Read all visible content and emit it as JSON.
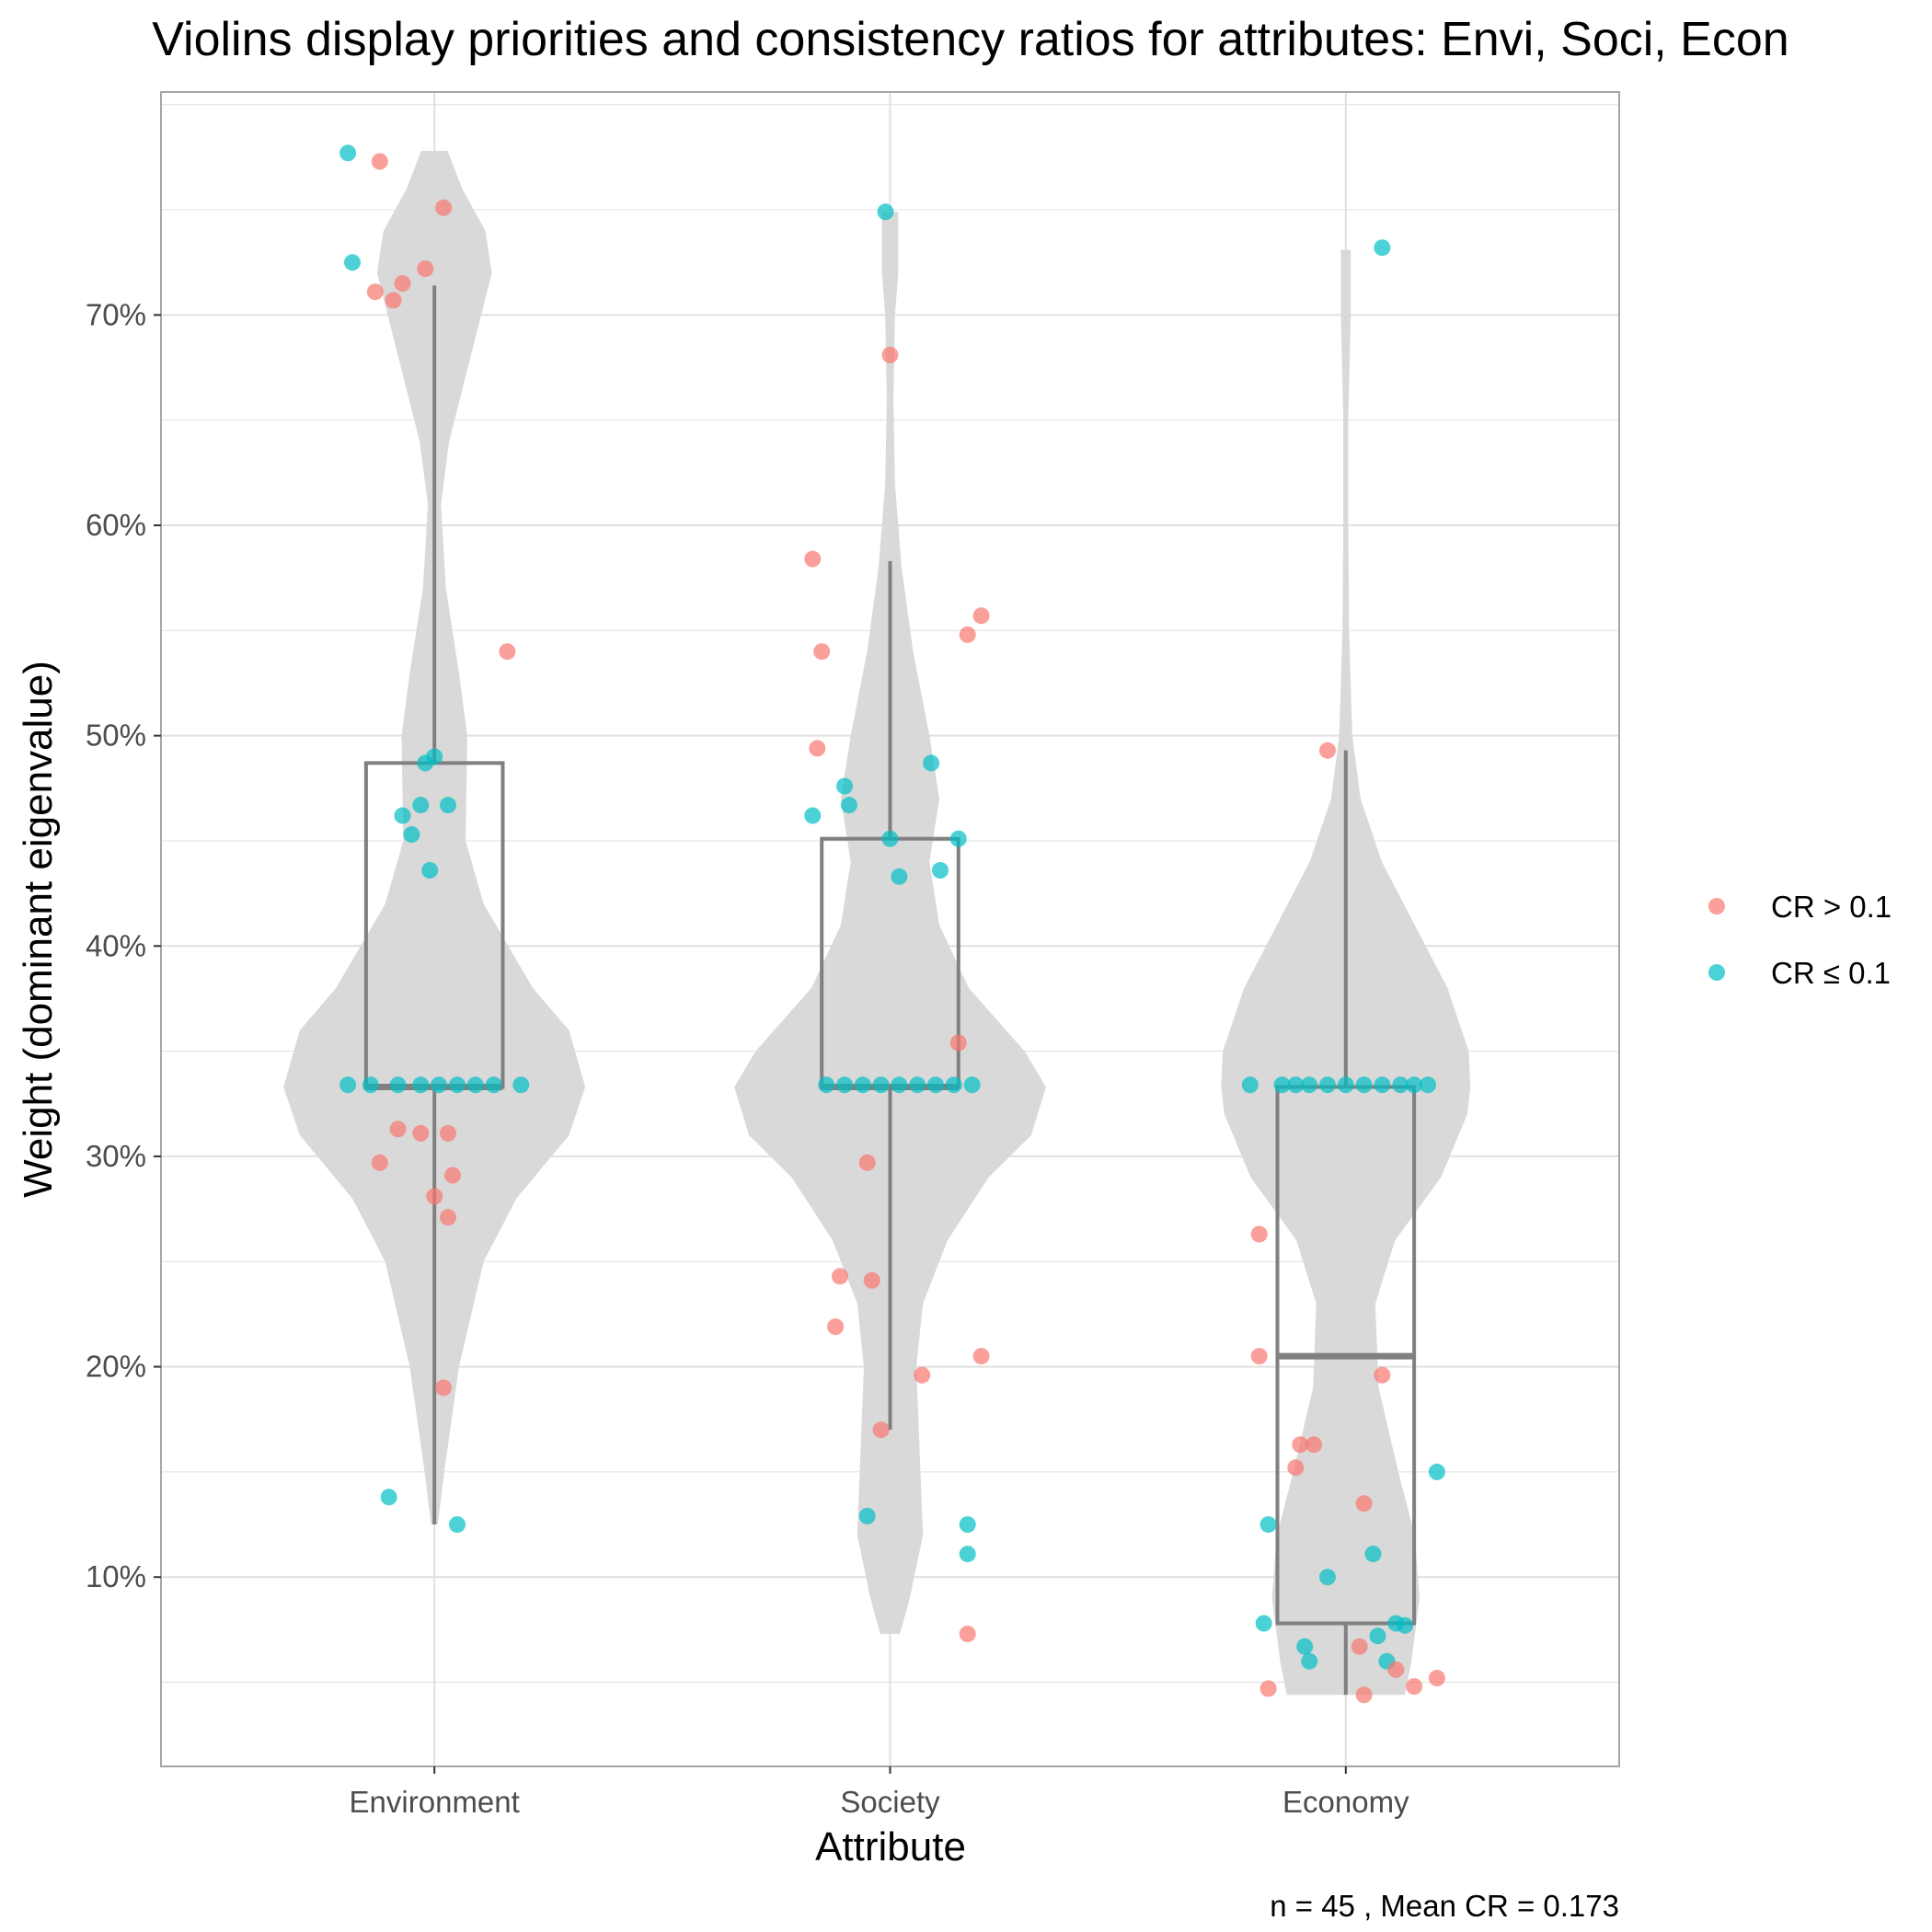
{
  "chart_data": {
    "type": "violin",
    "title": "Violins display priorities and consistency ratios for attributes: Envi, Soci, Econ",
    "xlabel": "Attribute",
    "ylabel": "Weight (dominant eigenvalue)",
    "caption": "n = 45 , Mean CR = 0.173",
    "ylim": [
      0.01,
      0.806
    ],
    "y_ticks": [
      {
        "value": 0.1,
        "label": "10%"
      },
      {
        "value": 0.2,
        "label": "20%"
      },
      {
        "value": 0.3,
        "label": "30%"
      },
      {
        "value": 0.4,
        "label": "40%"
      },
      {
        "value": 0.5,
        "label": "50%"
      },
      {
        "value": 0.6,
        "label": "60%"
      },
      {
        "value": 0.7,
        "label": "70%"
      }
    ],
    "y_minor": [
      0.05,
      0.15,
      0.25,
      0.35,
      0.45,
      0.55,
      0.65,
      0.75,
      0.8
    ],
    "categories": [
      "Environment",
      "Society",
      "Economy"
    ],
    "grid": true,
    "legend": {
      "position": "right",
      "items": [
        {
          "label": "CR > 0.1",
          "color": "#F8766D"
        },
        {
          "label": "CR ≤ 0.1",
          "color": "#00BFC4"
        }
      ]
    },
    "colors": {
      "violin": "#d9d9d9",
      "box": "#808080",
      "high_cr": "#F8766D",
      "low_cr": "#00BFC4",
      "grid": "#e0e0e0",
      "panel_border": "#a6a6a6"
    },
    "boxes": [
      {
        "category": "Environment",
        "lower_whisker": 0.125,
        "q1": 0.333,
        "median": 0.333,
        "q3": 0.487,
        "upper_whisker": 0.714
      },
      {
        "category": "Society",
        "lower_whisker": 0.17,
        "q1": 0.333,
        "median": 0.333,
        "q3": 0.451,
        "upper_whisker": 0.583
      },
      {
        "category": "Economy",
        "lower_whisker": 0.044,
        "q1": 0.078,
        "median": 0.205,
        "q3": 0.333,
        "upper_whisker": 0.493
      }
    ],
    "violins": [
      {
        "category": "Environment",
        "width_max": 0.72,
        "profile": [
          [
            0.125,
            0.02
          ],
          [
            0.15,
            0.06
          ],
          [
            0.2,
            0.15
          ],
          [
            0.25,
            0.3
          ],
          [
            0.28,
            0.5
          ],
          [
            0.31,
            0.82
          ],
          [
            0.333,
            0.92
          ],
          [
            0.36,
            0.82
          ],
          [
            0.38,
            0.6
          ],
          [
            0.42,
            0.3
          ],
          [
            0.45,
            0.19
          ],
          [
            0.5,
            0.2
          ],
          [
            0.53,
            0.15
          ],
          [
            0.57,
            0.07
          ],
          [
            0.61,
            0.04
          ],
          [
            0.64,
            0.09
          ],
          [
            0.68,
            0.22
          ],
          [
            0.72,
            0.35
          ],
          [
            0.74,
            0.31
          ],
          [
            0.76,
            0.17
          ],
          [
            0.778,
            0.08
          ]
        ]
      },
      {
        "category": "Society",
        "width_max": 0.72,
        "profile": [
          [
            0.073,
            0.06
          ],
          [
            0.09,
            0.12
          ],
          [
            0.12,
            0.2
          ],
          [
            0.16,
            0.18
          ],
          [
            0.2,
            0.16
          ],
          [
            0.23,
            0.2
          ],
          [
            0.26,
            0.35
          ],
          [
            0.29,
            0.6
          ],
          [
            0.31,
            0.86
          ],
          [
            0.333,
            0.95
          ],
          [
            0.35,
            0.82
          ],
          [
            0.38,
            0.48
          ],
          [
            0.41,
            0.3
          ],
          [
            0.44,
            0.24
          ],
          [
            0.47,
            0.3
          ],
          [
            0.5,
            0.24
          ],
          [
            0.54,
            0.14
          ],
          [
            0.58,
            0.07
          ],
          [
            0.62,
            0.03
          ],
          [
            0.66,
            0.02
          ],
          [
            0.7,
            0.03
          ],
          [
            0.72,
            0.05
          ],
          [
            0.749,
            0.05
          ]
        ]
      },
      {
        "category": "Economy",
        "width_max": 0.72,
        "profile": [
          [
            0.044,
            0.36
          ],
          [
            0.06,
            0.4
          ],
          [
            0.09,
            0.45
          ],
          [
            0.12,
            0.42
          ],
          [
            0.15,
            0.32
          ],
          [
            0.19,
            0.2
          ],
          [
            0.23,
            0.18
          ],
          [
            0.26,
            0.3
          ],
          [
            0.29,
            0.58
          ],
          [
            0.32,
            0.74
          ],
          [
            0.333,
            0.76
          ],
          [
            0.35,
            0.75
          ],
          [
            0.38,
            0.62
          ],
          [
            0.41,
            0.42
          ],
          [
            0.44,
            0.22
          ],
          [
            0.47,
            0.09
          ],
          [
            0.5,
            0.04
          ],
          [
            0.55,
            0.02
          ],
          [
            0.6,
            0.015
          ],
          [
            0.65,
            0.015
          ],
          [
            0.7,
            0.03
          ],
          [
            0.731,
            0.03
          ]
        ]
      }
    ],
    "series": [
      {
        "category": "Environment",
        "points": [
          {
            "x": -0.19,
            "y": 0.777,
            "cr": "low"
          },
          {
            "x": -0.12,
            "y": 0.773,
            "cr": "high"
          },
          {
            "x": 0.02,
            "y": 0.751,
            "cr": "high"
          },
          {
            "x": -0.18,
            "y": 0.725,
            "cr": "low"
          },
          {
            "x": -0.02,
            "y": 0.722,
            "cr": "high"
          },
          {
            "x": -0.07,
            "y": 0.715,
            "cr": "high"
          },
          {
            "x": -0.13,
            "y": 0.711,
            "cr": "high"
          },
          {
            "x": -0.09,
            "y": 0.707,
            "cr": "high"
          },
          {
            "x": 0.16,
            "y": 0.54,
            "cr": "high"
          },
          {
            "x": 0.0,
            "y": 0.49,
            "cr": "low"
          },
          {
            "x": -0.02,
            "y": 0.487,
            "cr": "low"
          },
          {
            "x": -0.03,
            "y": 0.467,
            "cr": "low"
          },
          {
            "x": 0.03,
            "y": 0.467,
            "cr": "low"
          },
          {
            "x": -0.07,
            "y": 0.462,
            "cr": "low"
          },
          {
            "x": -0.05,
            "y": 0.453,
            "cr": "low"
          },
          {
            "x": -0.01,
            "y": 0.436,
            "cr": "low"
          },
          {
            "x": -0.19,
            "y": 0.334,
            "cr": "low"
          },
          {
            "x": -0.14,
            "y": 0.334,
            "cr": "low"
          },
          {
            "x": -0.08,
            "y": 0.334,
            "cr": "low"
          },
          {
            "x": -0.03,
            "y": 0.334,
            "cr": "low"
          },
          {
            "x": 0.01,
            "y": 0.334,
            "cr": "low"
          },
          {
            "x": 0.05,
            "y": 0.334,
            "cr": "low"
          },
          {
            "x": 0.09,
            "y": 0.334,
            "cr": "low"
          },
          {
            "x": 0.13,
            "y": 0.334,
            "cr": "low"
          },
          {
            "x": 0.19,
            "y": 0.334,
            "cr": "low"
          },
          {
            "x": -0.08,
            "y": 0.313,
            "cr": "high"
          },
          {
            "x": -0.03,
            "y": 0.311,
            "cr": "high"
          },
          {
            "x": 0.03,
            "y": 0.311,
            "cr": "high"
          },
          {
            "x": -0.12,
            "y": 0.297,
            "cr": "high"
          },
          {
            "x": 0.04,
            "y": 0.291,
            "cr": "high"
          },
          {
            "x": 0.0,
            "y": 0.281,
            "cr": "high"
          },
          {
            "x": 0.03,
            "y": 0.271,
            "cr": "high"
          },
          {
            "x": 0.02,
            "y": 0.19,
            "cr": "high"
          },
          {
            "x": -0.1,
            "y": 0.138,
            "cr": "low"
          },
          {
            "x": 0.05,
            "y": 0.125,
            "cr": "low"
          }
        ]
      },
      {
        "category": "Society",
        "points": [
          {
            "x": -0.01,
            "y": 0.749,
            "cr": "low"
          },
          {
            "x": 0.0,
            "y": 0.681,
            "cr": "high"
          },
          {
            "x": -0.17,
            "y": 0.584,
            "cr": "high"
          },
          {
            "x": 0.2,
            "y": 0.557,
            "cr": "high"
          },
          {
            "x": 0.17,
            "y": 0.548,
            "cr": "high"
          },
          {
            "x": -0.15,
            "y": 0.54,
            "cr": "high"
          },
          {
            "x": -0.16,
            "y": 0.494,
            "cr": "high"
          },
          {
            "x": 0.09,
            "y": 0.487,
            "cr": "low"
          },
          {
            "x": -0.1,
            "y": 0.476,
            "cr": "low"
          },
          {
            "x": -0.09,
            "y": 0.467,
            "cr": "low"
          },
          {
            "x": -0.17,
            "y": 0.462,
            "cr": "low"
          },
          {
            "x": 0.0,
            "y": 0.451,
            "cr": "low"
          },
          {
            "x": 0.15,
            "y": 0.451,
            "cr": "low"
          },
          {
            "x": 0.11,
            "y": 0.436,
            "cr": "low"
          },
          {
            "x": 0.02,
            "y": 0.433,
            "cr": "low"
          },
          {
            "x": 0.15,
            "y": 0.354,
            "cr": "high"
          },
          {
            "x": -0.14,
            "y": 0.334,
            "cr": "low"
          },
          {
            "x": -0.1,
            "y": 0.334,
            "cr": "low"
          },
          {
            "x": -0.06,
            "y": 0.334,
            "cr": "low"
          },
          {
            "x": -0.02,
            "y": 0.334,
            "cr": "low"
          },
          {
            "x": 0.02,
            "y": 0.334,
            "cr": "low"
          },
          {
            "x": 0.06,
            "y": 0.334,
            "cr": "low"
          },
          {
            "x": 0.1,
            "y": 0.334,
            "cr": "low"
          },
          {
            "x": 0.14,
            "y": 0.334,
            "cr": "low"
          },
          {
            "x": 0.18,
            "y": 0.334,
            "cr": "low"
          },
          {
            "x": -0.05,
            "y": 0.297,
            "cr": "high"
          },
          {
            "x": -0.11,
            "y": 0.243,
            "cr": "high"
          },
          {
            "x": -0.04,
            "y": 0.241,
            "cr": "high"
          },
          {
            "x": -0.12,
            "y": 0.219,
            "cr": "high"
          },
          {
            "x": 0.2,
            "y": 0.205,
            "cr": "high"
          },
          {
            "x": 0.07,
            "y": 0.196,
            "cr": "high"
          },
          {
            "x": -0.02,
            "y": 0.17,
            "cr": "high"
          },
          {
            "x": -0.05,
            "y": 0.129,
            "cr": "low"
          },
          {
            "x": 0.17,
            "y": 0.125,
            "cr": "low"
          },
          {
            "x": 0.17,
            "y": 0.111,
            "cr": "low"
          },
          {
            "x": 0.17,
            "y": 0.073,
            "cr": "high"
          }
        ]
      },
      {
        "category": "Economy",
        "points": [
          {
            "x": 0.08,
            "y": 0.732,
            "cr": "low"
          },
          {
            "x": -0.04,
            "y": 0.493,
            "cr": "high"
          },
          {
            "x": -0.21,
            "y": 0.334,
            "cr": "low"
          },
          {
            "x": -0.14,
            "y": 0.334,
            "cr": "low"
          },
          {
            "x": -0.11,
            "y": 0.334,
            "cr": "low"
          },
          {
            "x": -0.08,
            "y": 0.334,
            "cr": "low"
          },
          {
            "x": -0.04,
            "y": 0.334,
            "cr": "low"
          },
          {
            "x": 0.0,
            "y": 0.334,
            "cr": "low"
          },
          {
            "x": 0.04,
            "y": 0.334,
            "cr": "low"
          },
          {
            "x": 0.08,
            "y": 0.334,
            "cr": "low"
          },
          {
            "x": 0.12,
            "y": 0.334,
            "cr": "low"
          },
          {
            "x": 0.15,
            "y": 0.334,
            "cr": "low"
          },
          {
            "x": 0.18,
            "y": 0.334,
            "cr": "low"
          },
          {
            "x": -0.19,
            "y": 0.263,
            "cr": "high"
          },
          {
            "x": -0.19,
            "y": 0.205,
            "cr": "high"
          },
          {
            "x": 0.08,
            "y": 0.196,
            "cr": "high"
          },
          {
            "x": -0.1,
            "y": 0.163,
            "cr": "high"
          },
          {
            "x": -0.07,
            "y": 0.163,
            "cr": "high"
          },
          {
            "x": -0.11,
            "y": 0.152,
            "cr": "high"
          },
          {
            "x": 0.2,
            "y": 0.15,
            "cr": "low"
          },
          {
            "x": 0.04,
            "y": 0.135,
            "cr": "high"
          },
          {
            "x": -0.17,
            "y": 0.125,
            "cr": "low"
          },
          {
            "x": 0.06,
            "y": 0.111,
            "cr": "low"
          },
          {
            "x": -0.04,
            "y": 0.1,
            "cr": "low"
          },
          {
            "x": -0.18,
            "y": 0.078,
            "cr": "low"
          },
          {
            "x": 0.11,
            "y": 0.078,
            "cr": "low"
          },
          {
            "x": 0.13,
            "y": 0.077,
            "cr": "low"
          },
          {
            "x": 0.07,
            "y": 0.072,
            "cr": "low"
          },
          {
            "x": 0.03,
            "y": 0.067,
            "cr": "high"
          },
          {
            "x": -0.09,
            "y": 0.067,
            "cr": "low"
          },
          {
            "x": -0.08,
            "y": 0.06,
            "cr": "low"
          },
          {
            "x": 0.09,
            "y": 0.06,
            "cr": "low"
          },
          {
            "x": 0.11,
            "y": 0.056,
            "cr": "high"
          },
          {
            "x": 0.2,
            "y": 0.052,
            "cr": "high"
          },
          {
            "x": 0.15,
            "y": 0.048,
            "cr": "high"
          },
          {
            "x": -0.17,
            "y": 0.047,
            "cr": "high"
          },
          {
            "x": 0.04,
            "y": 0.044,
            "cr": "high"
          }
        ]
      }
    ]
  }
}
